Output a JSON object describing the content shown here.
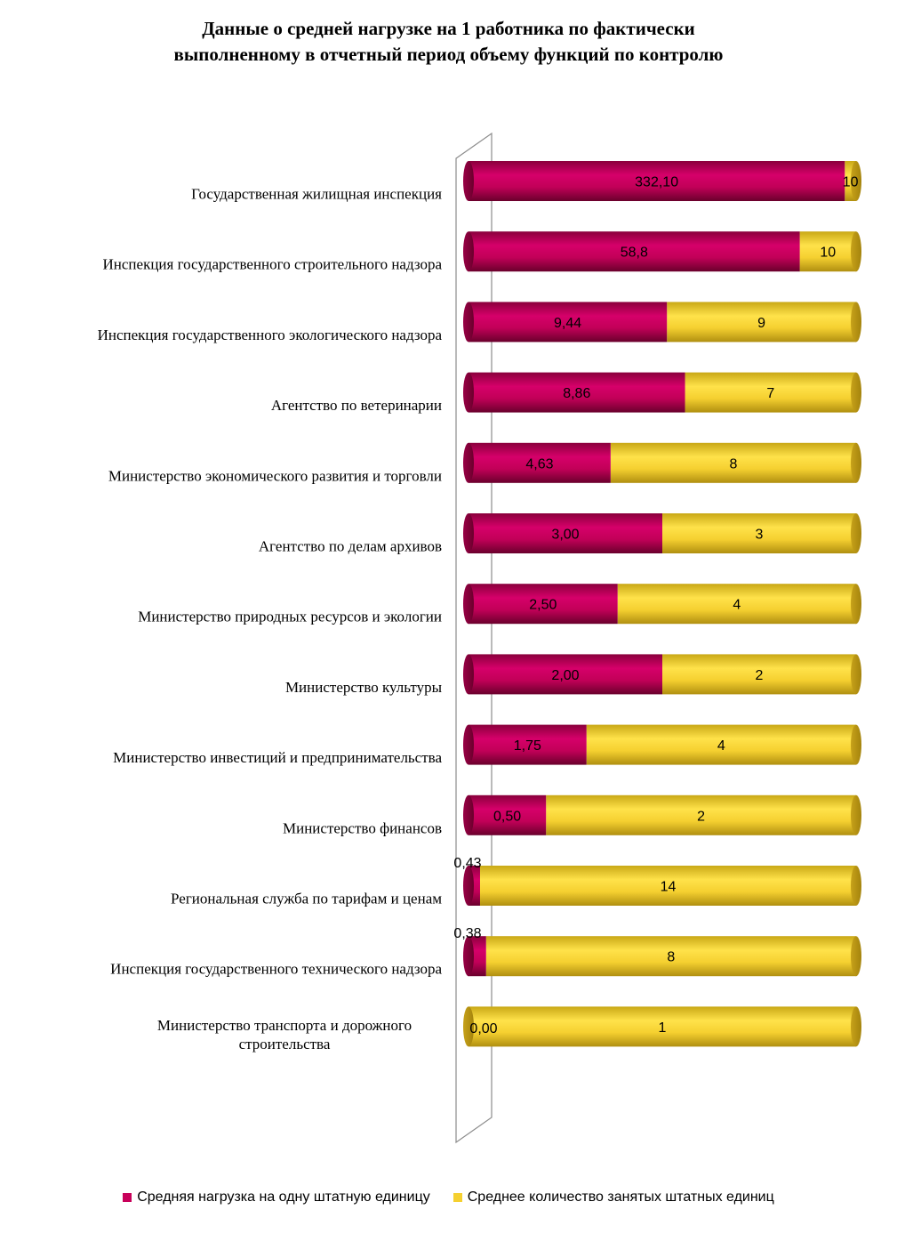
{
  "colors": {
    "load": "#c8005a",
    "staff": "#f5d030"
  },
  "chart_data": {
    "type": "bar",
    "orientation": "horizontal",
    "stacked": "percent",
    "title": "Данные о средней нагрузке на 1 работника по фактически выполненному в отчетный период объему функций по контролю",
    "title_lines": [
      "Данные о средней нагрузке на 1 работника по фактически",
      "выполненному в отчетный период объему функций по контролю"
    ],
    "categories": [
      "Государственная жилищная инспекция",
      "Инспекция государственного строительного надзора",
      "Инспекция государственного экологического надзора",
      "Агентство по ветеринарии",
      "Министерство экономического развития и торговли",
      "Агентство по делам архивов",
      "Министерство природных ресурсов и экологии",
      "Министерство культуры",
      "Министерство инвестиций и предпринимательства",
      "Министерство финансов",
      "Региональная служба по тарифам и ценам",
      "Инспекция государственного технического надзора",
      "Министерство транспорта и дорожного строительства"
    ],
    "category_lines": [
      [
        "Государственная жилищная инспекция"
      ],
      [
        "Инспекция государственного строительного надзора"
      ],
      [
        "Инспекция государственного экологического надзора"
      ],
      [
        "Агентство по ветеринарии"
      ],
      [
        "Министерство экономического развития и торговли"
      ],
      [
        "Агентство по делам архивов"
      ],
      [
        "Министерство природных ресурсов и экологии"
      ],
      [
        "Министерство культуры"
      ],
      [
        "Министерство инвестиций и предпринимательства"
      ],
      [
        "Министерство финансов"
      ],
      [
        "Региональная служба по тарифам и ценам"
      ],
      [
        "Инспекция государственного технического надзора"
      ],
      [
        "Министерство транспорта и дорожного",
        "строительства"
      ]
    ],
    "series": [
      {
        "name": "Средняя нагрузка на одну штатную единицу",
        "values": [
          332.1,
          58.8,
          9.44,
          8.86,
          4.63,
          3.0,
          2.5,
          2.0,
          1.75,
          0.5,
          0.43,
          0.38,
          0.0
        ],
        "labels": [
          "332,10",
          "58,8",
          "9,44",
          "8,86",
          "4,63",
          "3,00",
          "2,50",
          "2,00",
          "1,75",
          "0,50",
          "0,43",
          "0,38",
          "0,00"
        ]
      },
      {
        "name": "Среднее количество занятых штатных единиц",
        "values": [
          10,
          10,
          9,
          7,
          8,
          3,
          4,
          2,
          4,
          2,
          14,
          8,
          1
        ],
        "labels": [
          "10",
          "10",
          "9",
          "7",
          "8",
          "3",
          "4",
          "2",
          "4",
          "2",
          "14",
          "8",
          "1"
        ]
      }
    ],
    "legend_position": "bottom",
    "grid": false
  }
}
